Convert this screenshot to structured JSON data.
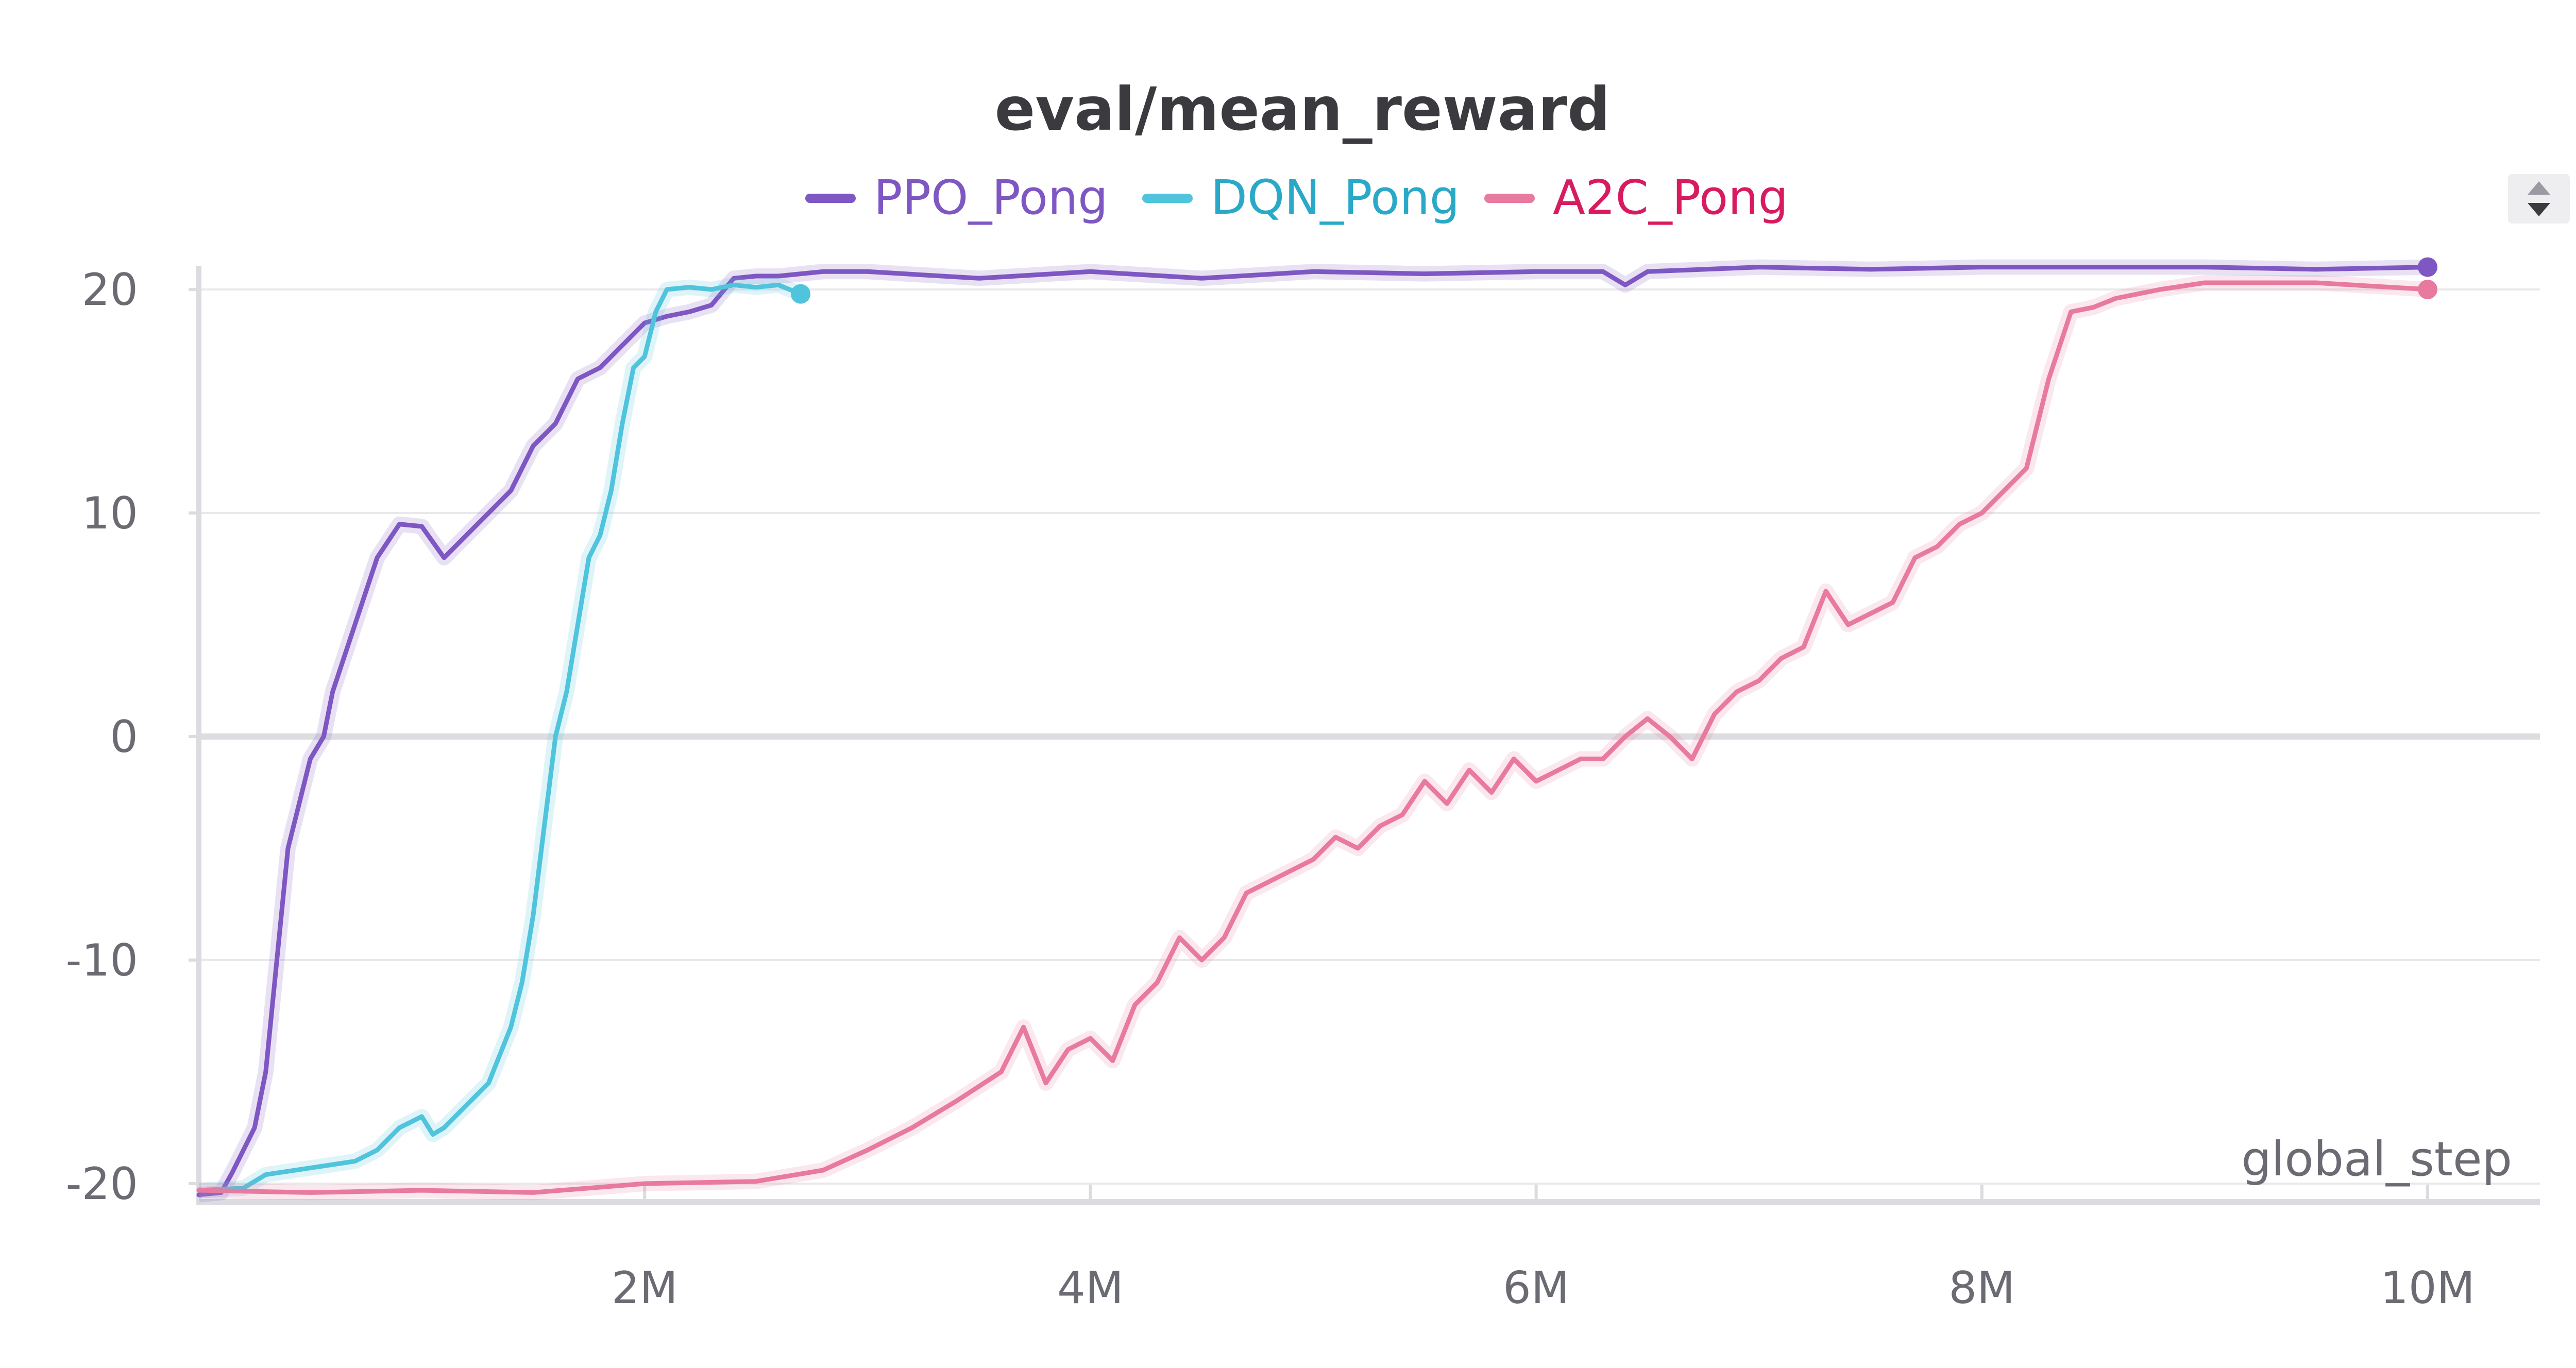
{
  "colors": {
    "PPO_Pong": "#7e57c2",
    "DQN_Pong": "#4fc4dc",
    "A2C_Pong": "#e8799f",
    "legend_text_PPO_Pong": "#7e57c2",
    "legend_text_DQN_Pong": "#29a9c7",
    "legend_text_A2C_Pong": "#d81b60",
    "gridline": "#e9e9ec",
    "zero_line": "#dddde1",
    "axis": "#dcdce0",
    "tick_text": "#6b6b73",
    "title": "#3a3a3f"
  },
  "icons": {
    "scroll": "up-down-arrows-icon"
  },
  "chart_data": {
    "type": "line",
    "title": "eval/mean_reward",
    "xlabel": "global_step",
    "ylabel": "",
    "xlim": [
      0,
      10500000
    ],
    "ylim": [
      -21,
      22
    ],
    "grid": true,
    "legend_position": "top-center",
    "x_ticks": [
      {
        "value": 2000000,
        "label": "2M"
      },
      {
        "value": 4000000,
        "label": "4M"
      },
      {
        "value": 6000000,
        "label": "6M"
      },
      {
        "value": 8000000,
        "label": "8M"
      },
      {
        "value": 10000000,
        "label": "10M"
      }
    ],
    "y_ticks": [
      {
        "value": 20,
        "label": "20"
      },
      {
        "value": 10,
        "label": "10"
      },
      {
        "value": 0,
        "label": "0"
      },
      {
        "value": -10,
        "label": "-10"
      },
      {
        "value": -20,
        "label": "-20"
      }
    ],
    "series": [
      {
        "name": "PPO_Pong",
        "points": [
          [
            0,
            -20.5
          ],
          [
            100000,
            -20.4
          ],
          [
            150000,
            -19.5
          ],
          [
            250000,
            -17.5
          ],
          [
            300000,
            -15
          ],
          [
            350000,
            -10
          ],
          [
            400000,
            -5
          ],
          [
            450000,
            -3
          ],
          [
            500000,
            -1
          ],
          [
            560000,
            0
          ],
          [
            600000,
            2
          ],
          [
            700000,
            5
          ],
          [
            800000,
            8
          ],
          [
            900000,
            9.5
          ],
          [
            1000000,
            9.4
          ],
          [
            1100000,
            8
          ],
          [
            1200000,
            9
          ],
          [
            1300000,
            10
          ],
          [
            1400000,
            11
          ],
          [
            1500000,
            13
          ],
          [
            1600000,
            14
          ],
          [
            1700000,
            16
          ],
          [
            1800000,
            16.5
          ],
          [
            1900000,
            17.5
          ],
          [
            2000000,
            18.5
          ],
          [
            2100000,
            18.8
          ],
          [
            2200000,
            19
          ],
          [
            2300000,
            19.3
          ],
          [
            2400000,
            20.5
          ],
          [
            2500000,
            20.6
          ],
          [
            2600000,
            20.6
          ],
          [
            2800000,
            20.8
          ],
          [
            3000000,
            20.8
          ],
          [
            3500000,
            20.5
          ],
          [
            4000000,
            20.8
          ],
          [
            4500000,
            20.5
          ],
          [
            5000000,
            20.8
          ],
          [
            5500000,
            20.7
          ],
          [
            6000000,
            20.8
          ],
          [
            6300000,
            20.8
          ],
          [
            6400000,
            20.2
          ],
          [
            6500000,
            20.8
          ],
          [
            7000000,
            21
          ],
          [
            7500000,
            20.9
          ],
          [
            8000000,
            21
          ],
          [
            8500000,
            21
          ],
          [
            9000000,
            21
          ],
          [
            9500000,
            20.9
          ],
          [
            10000000,
            21
          ]
        ]
      },
      {
        "name": "DQN_Pong",
        "points": [
          [
            0,
            -20.3
          ],
          [
            200000,
            -20.2
          ],
          [
            300000,
            -19.6
          ],
          [
            500000,
            -19.3
          ],
          [
            700000,
            -19
          ],
          [
            800000,
            -18.5
          ],
          [
            900000,
            -17.5
          ],
          [
            1000000,
            -17
          ],
          [
            1050000,
            -17.8
          ],
          [
            1100000,
            -17.5
          ],
          [
            1200000,
            -16.5
          ],
          [
            1300000,
            -15.5
          ],
          [
            1400000,
            -13
          ],
          [
            1450000,
            -11
          ],
          [
            1500000,
            -8
          ],
          [
            1550000,
            -4
          ],
          [
            1600000,
            0
          ],
          [
            1650000,
            2
          ],
          [
            1700000,
            5
          ],
          [
            1750000,
            8
          ],
          [
            1800000,
            9
          ],
          [
            1850000,
            11
          ],
          [
            1900000,
            14
          ],
          [
            1950000,
            16.5
          ],
          [
            2000000,
            17
          ],
          [
            2050000,
            19
          ],
          [
            2100000,
            20
          ],
          [
            2200000,
            20.1
          ],
          [
            2300000,
            20
          ],
          [
            2400000,
            20.2
          ],
          [
            2500000,
            20.1
          ],
          [
            2600000,
            20.2
          ],
          [
            2700000,
            19.8
          ]
        ]
      },
      {
        "name": "A2C_Pong",
        "points": [
          [
            0,
            -20.3
          ],
          [
            500000,
            -20.4
          ],
          [
            1000000,
            -20.3
          ],
          [
            1500000,
            -20.4
          ],
          [
            2000000,
            -20
          ],
          [
            2500000,
            -19.9
          ],
          [
            2800000,
            -19.4
          ],
          [
            3000000,
            -18.5
          ],
          [
            3200000,
            -17.5
          ],
          [
            3400000,
            -16.3
          ],
          [
            3600000,
            -15
          ],
          [
            3700000,
            -13
          ],
          [
            3800000,
            -15.5
          ],
          [
            3900000,
            -14
          ],
          [
            4000000,
            -13.5
          ],
          [
            4100000,
            -14.5
          ],
          [
            4200000,
            -12
          ],
          [
            4300000,
            -11
          ],
          [
            4400000,
            -9
          ],
          [
            4500000,
            -10
          ],
          [
            4600000,
            -9
          ],
          [
            4700000,
            -7
          ],
          [
            4800000,
            -6.5
          ],
          [
            4900000,
            -6
          ],
          [
            5000000,
            -5.5
          ],
          [
            5100000,
            -4.5
          ],
          [
            5200000,
            -5
          ],
          [
            5300000,
            -4
          ],
          [
            5400000,
            -3.5
          ],
          [
            5500000,
            -2
          ],
          [
            5600000,
            -3
          ],
          [
            5700000,
            -1.5
          ],
          [
            5800000,
            -2.5
          ],
          [
            5900000,
            -1
          ],
          [
            6000000,
            -2
          ],
          [
            6100000,
            -1.5
          ],
          [
            6200000,
            -1
          ],
          [
            6300000,
            -1
          ],
          [
            6400000,
            0
          ],
          [
            6500000,
            0.8
          ],
          [
            6600000,
            0
          ],
          [
            6700000,
            -1
          ],
          [
            6800000,
            1
          ],
          [
            6900000,
            2
          ],
          [
            7000000,
            2.5
          ],
          [
            7100000,
            3.5
          ],
          [
            7200000,
            4
          ],
          [
            7300000,
            6.5
          ],
          [
            7400000,
            5
          ],
          [
            7500000,
            5.5
          ],
          [
            7600000,
            6
          ],
          [
            7700000,
            8
          ],
          [
            7800000,
            8.5
          ],
          [
            7900000,
            9.5
          ],
          [
            8000000,
            10
          ],
          [
            8100000,
            11
          ],
          [
            8200000,
            12
          ],
          [
            8300000,
            16
          ],
          [
            8400000,
            19
          ],
          [
            8500000,
            19.2
          ],
          [
            8600000,
            19.6
          ],
          [
            8700000,
            19.8
          ],
          [
            8800000,
            20
          ],
          [
            9000000,
            20.3
          ],
          [
            9500000,
            20.3
          ],
          [
            10000000,
            20
          ]
        ]
      }
    ]
  }
}
